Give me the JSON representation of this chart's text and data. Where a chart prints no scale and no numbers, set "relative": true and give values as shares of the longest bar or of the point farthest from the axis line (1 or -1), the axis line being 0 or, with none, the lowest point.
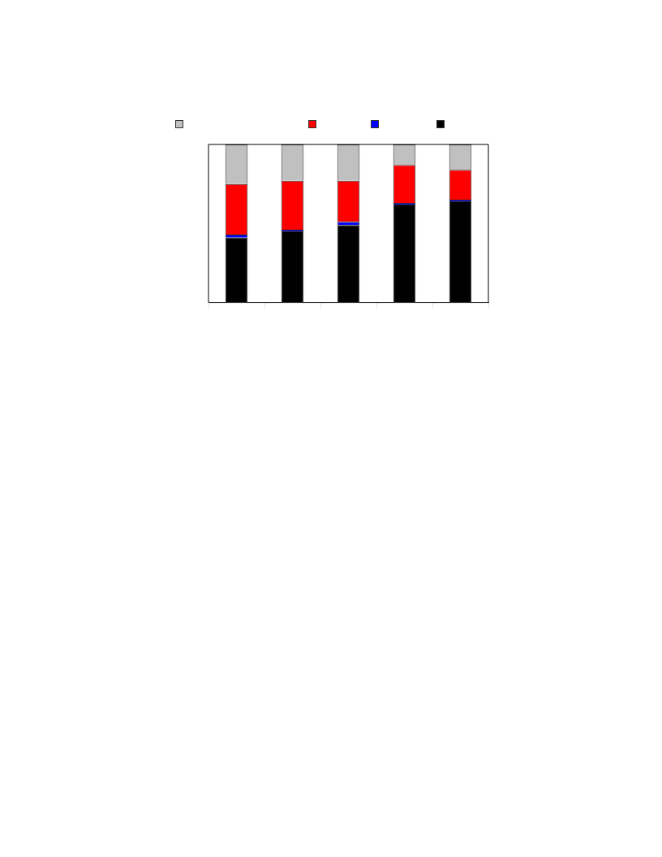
{
  "chart_data": {
    "type": "bar",
    "stacked": true,
    "relative": true,
    "grid": false,
    "categories": [
      null,
      null,
      null,
      null,
      null
    ],
    "series": [
      {
        "color": "#000000",
        "values": [
          0.41,
          0.45,
          0.49,
          0.62,
          0.64
        ]
      },
      {
        "color": "#0000ff",
        "values": [
          0.02,
          0.01,
          0.02,
          0.01,
          0.01
        ]
      },
      {
        "color": "#ff0000",
        "values": [
          0.32,
          0.31,
          0.26,
          0.24,
          0.19
        ]
      },
      {
        "color": "#c0c0c0",
        "values": [
          0.25,
          0.23,
          0.23,
          0.13,
          0.16
        ]
      }
    ]
  }
}
